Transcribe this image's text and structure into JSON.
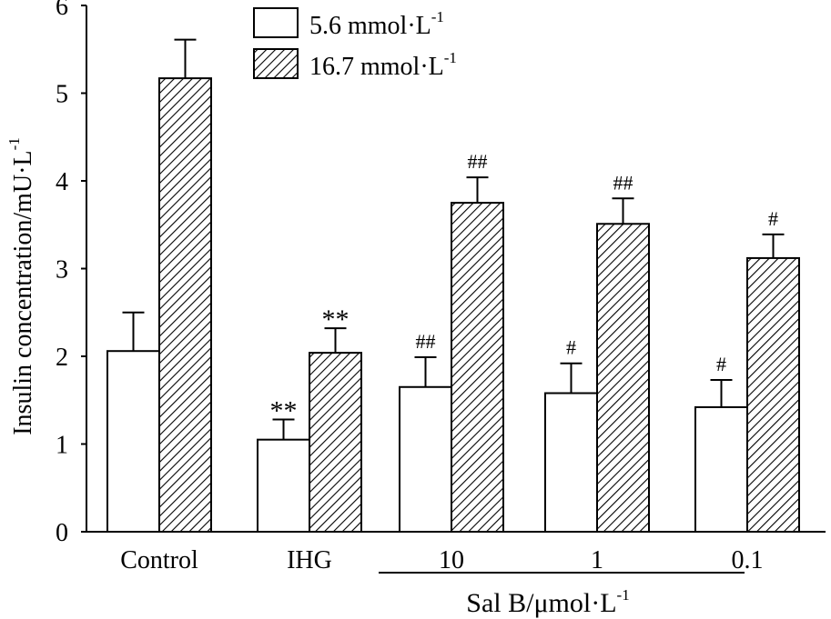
{
  "chart_data": {
    "type": "bar",
    "ylabel": "Insulin concentration/mU·L",
    "ylabel_sup": "-1",
    "ylim": [
      0,
      6
    ],
    "yticks": [
      "0",
      "1",
      "2",
      "3",
      "4",
      "5",
      "6"
    ],
    "categories": [
      "Control",
      "IHG",
      "10",
      "1",
      "0.1"
    ],
    "group_label": "Sal B/μmol·L",
    "group_label_sup": "-1",
    "series": [
      {
        "name": "5.6 mmol·L",
        "name_sup": "-1",
        "pattern": "open",
        "values": [
          2.06,
          1.05,
          1.65,
          1.58,
          1.42
        ],
        "errors": [
          0.44,
          0.23,
          0.34,
          0.34,
          0.31
        ],
        "annotations": [
          "",
          "**",
          "##",
          "#",
          "#"
        ]
      },
      {
        "name": "16.7 mmol·L",
        "name_sup": "-1",
        "pattern": "hatched",
        "values": [
          5.17,
          2.04,
          3.75,
          3.51,
          3.12
        ],
        "errors": [
          0.44,
          0.28,
          0.29,
          0.29,
          0.27
        ],
        "annotations": [
          "",
          "**",
          "##",
          "##",
          "#"
        ]
      }
    ],
    "colors": {
      "bar_fill": "#ffffff",
      "stroke": "#000000"
    }
  }
}
